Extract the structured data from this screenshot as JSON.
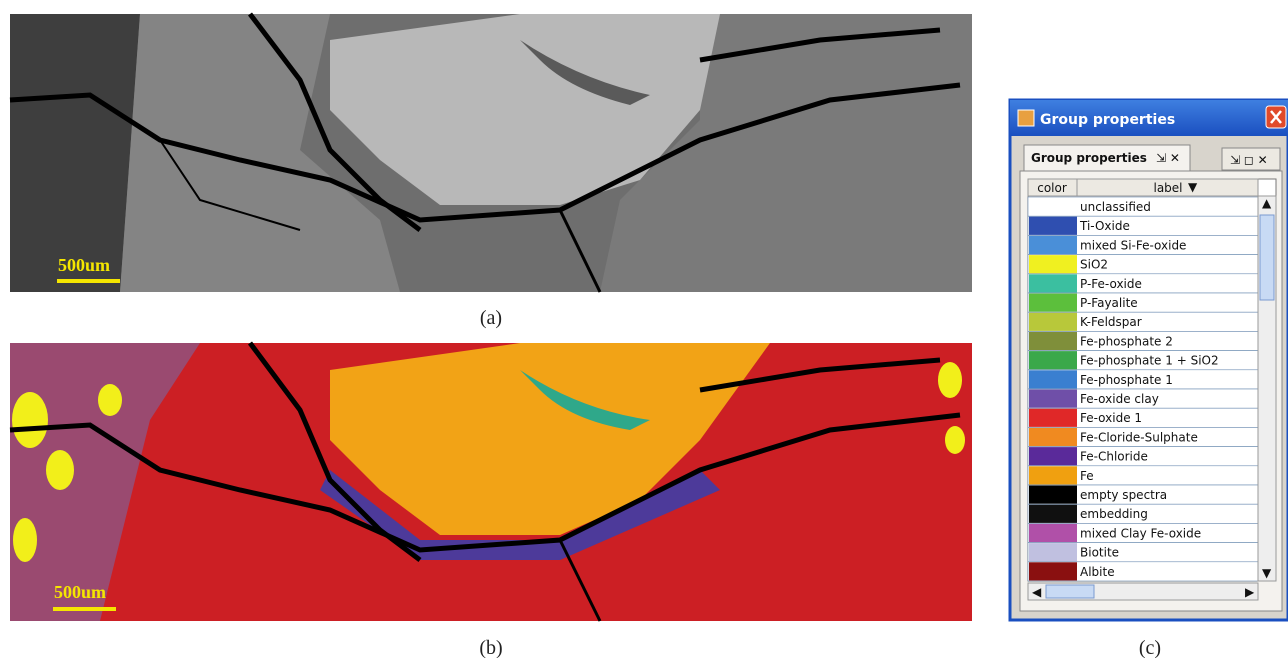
{
  "panels": {
    "a": {
      "caption": "(a)",
      "scale_bar": "500um"
    },
    "b": {
      "caption": "(b)",
      "scale_bar": "500um"
    },
    "c": {
      "caption": "(c)"
    }
  },
  "window": {
    "title": "Group properties",
    "tab": "Group properties",
    "table": {
      "headers": [
        "color",
        "label"
      ],
      "rows": [
        {
          "label": "unclassified",
          "color": "#ffffff"
        },
        {
          "label": "Ti-Oxide",
          "color": "#2f4fb0"
        },
        {
          "label": "mixed Si-Fe-oxide",
          "color": "#4a8fd8"
        },
        {
          "label": "SiO2",
          "color": "#f0f020"
        },
        {
          "label": "P-Fe-oxide",
          "color": "#3bbfa0"
        },
        {
          "label": "P-Fayalite",
          "color": "#5cbf3c"
        },
        {
          "label": "K-Feldspar",
          "color": "#b8c83a"
        },
        {
          "label": "Fe-phosphate 2",
          "color": "#7f8f3a"
        },
        {
          "label": "Fe-phosphate 1 + SiO2",
          "color": "#3aa84a"
        },
        {
          "label": "Fe-phosphate 1",
          "color": "#3a7fd0"
        },
        {
          "label": "Fe-oxide clay",
          "color": "#6f4fa8"
        },
        {
          "label": "Fe-oxide 1",
          "color": "#e02828"
        },
        {
          "label": "Fe-Cloride-Sulphate",
          "color": "#f08a20"
        },
        {
          "label": "Fe-Chloride",
          "color": "#5a2a9a"
        },
        {
          "label": "Fe",
          "color": "#f0a010"
        },
        {
          "label": "empty spectra",
          "color": "#000000"
        },
        {
          "label": "embedding",
          "color": "#101010"
        },
        {
          "label": "mixed Clay Fe-oxide",
          "color": "#b050a8"
        },
        {
          "label": "Biotite",
          "color": "#c0c0e0"
        },
        {
          "label": "Albite",
          "color": "#8a1010"
        }
      ]
    }
  }
}
